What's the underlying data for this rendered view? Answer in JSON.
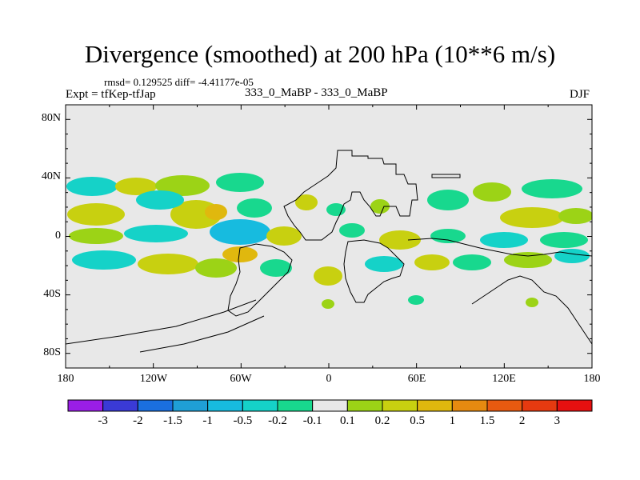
{
  "title": "Divergence (smoothed) at 200 hPa (10**6 m/s)",
  "stats": "rmsd= 0.129525 diff= -4.41177e-05",
  "left_label": "Expt = tfKep-tfJap",
  "center_label": "333_0_MaBP - 333_0_MaBP",
  "right_label": "DJF",
  "lat_labels": [
    "80N",
    "40N",
    "0",
    "40S",
    "80S"
  ],
  "lon_labels": [
    "180",
    "120W",
    "60W",
    "0",
    "60E",
    "120E",
    "180"
  ],
  "colorbar": {
    "labels": [
      "-3",
      "-2",
      "-1.5",
      "-1",
      "-0.5",
      "-0.2",
      "-0.1",
      "0.1",
      "0.2",
      "0.5",
      "1",
      "1.5",
      "2",
      "3"
    ],
    "colors": [
      "#9a1ee6",
      "#3a3ad6",
      "#1a6fe0",
      "#1f9fd6",
      "#17bbdf",
      "#15d2c8",
      "#18d88e",
      "#e8e8e8",
      "#9cd316",
      "#c8d010",
      "#e0b80e",
      "#e68a10",
      "#e85a10",
      "#e63a10",
      "#e61010"
    ]
  },
  "colors": {
    "background": "#e8e8e8",
    "coast": "#000000"
  }
}
